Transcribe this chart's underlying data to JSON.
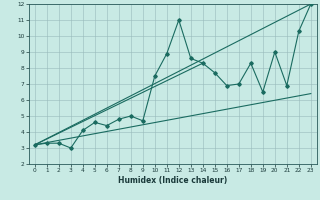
{
  "title": "",
  "xlabel": "Humidex (Indice chaleur)",
  "xlim": [
    -0.5,
    23.5
  ],
  "ylim": [
    2,
    12
  ],
  "xticks": [
    0,
    1,
    2,
    3,
    4,
    5,
    6,
    7,
    8,
    9,
    10,
    11,
    12,
    13,
    14,
    15,
    16,
    17,
    18,
    19,
    20,
    21,
    22,
    23
  ],
  "yticks": [
    2,
    3,
    4,
    5,
    6,
    7,
    8,
    9,
    10,
    11,
    12
  ],
  "bg_color": "#c8eae4",
  "grid_color": "#99bbbb",
  "line_color": "#1a6b60",
  "line1_x": [
    0,
    1,
    2,
    3,
    4,
    5,
    6,
    7,
    8,
    9,
    10,
    11,
    12,
    13,
    14,
    15,
    16,
    17,
    18,
    19,
    20,
    21,
    22,
    23
  ],
  "line1_y": [
    3.2,
    3.3,
    3.3,
    3.0,
    4.1,
    4.6,
    4.4,
    4.8,
    5.0,
    4.7,
    7.5,
    8.9,
    11.0,
    8.6,
    8.3,
    7.7,
    6.9,
    7.0,
    8.3,
    6.5,
    9.0,
    6.9,
    10.3,
    12.0
  ],
  "line2_x": [
    0,
    23
  ],
  "line2_y": [
    3.2,
    12.0
  ],
  "line3_x": [
    0,
    14
  ],
  "line3_y": [
    3.2,
    8.3
  ],
  "line4_x": [
    0,
    23
  ],
  "line4_y": [
    3.2,
    6.4
  ],
  "xlabel_fontsize": 5.5,
  "tick_fontsize": 4.2
}
